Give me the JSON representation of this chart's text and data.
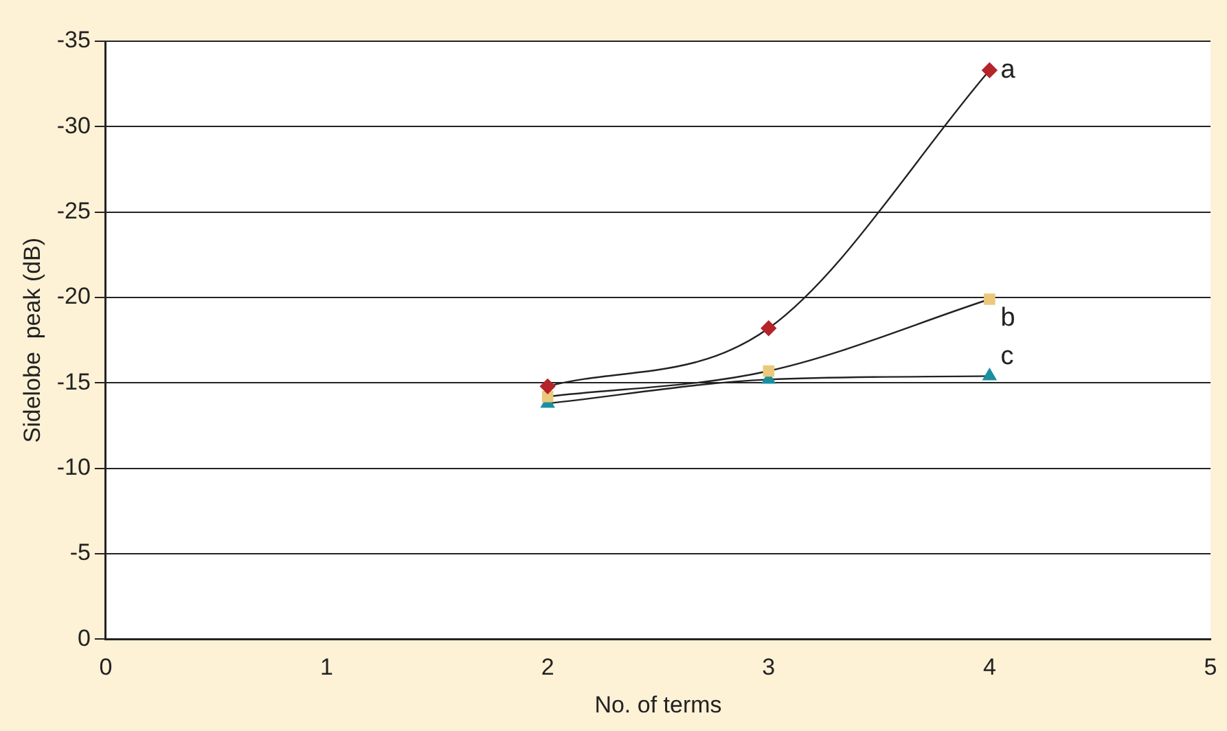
{
  "chart_data": {
    "type": "line",
    "xlabel": "No. of terms",
    "ylabel": "Sidelobe  peak (dB)",
    "x": [
      2,
      3,
      4
    ],
    "series": [
      {
        "name": "a",
        "color": "#b5242a",
        "marker": "diamond",
        "values": [
          -14.8,
          -18.2,
          -33.3
        ]
      },
      {
        "name": "b",
        "color": "#ecc87a",
        "marker": "square",
        "values": [
          -14.2,
          -15.7,
          -19.9
        ]
      },
      {
        "name": "c",
        "color": "#1a8fa0",
        "marker": "triangle",
        "values": [
          -13.8,
          -15.2,
          -15.4
        ]
      }
    ],
    "xlim": [
      0,
      5
    ],
    "xticks": [
      0,
      1,
      2,
      3,
      4,
      5
    ],
    "ylim": [
      0,
      -35
    ],
    "yticks": [
      0,
      -5,
      -10,
      -15,
      -20,
      -25,
      -30,
      -35
    ],
    "grid": "y",
    "legend": false
  }
}
